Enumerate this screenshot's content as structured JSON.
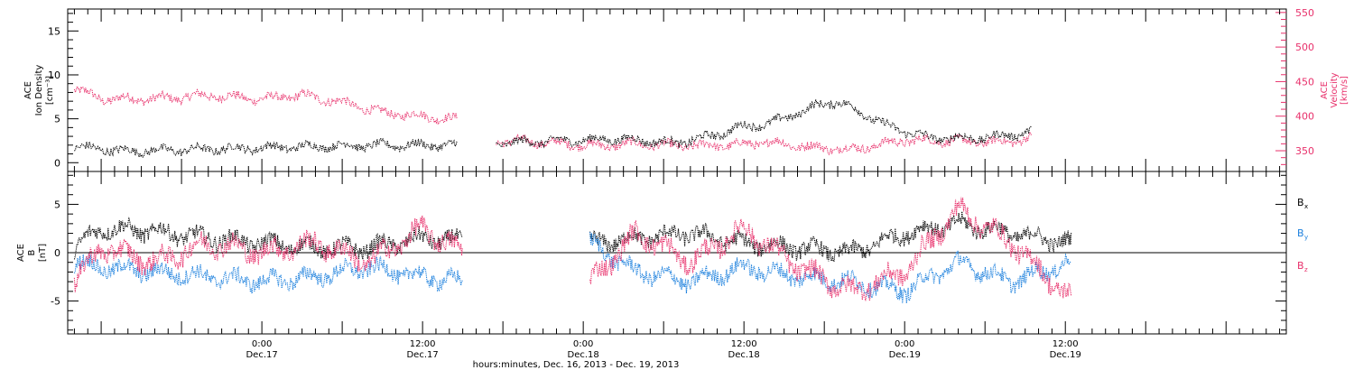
{
  "colors": {
    "black": "#000000",
    "pink": "#e8306b",
    "blue": "#1a7fdd"
  },
  "chart_data": [
    {
      "type": "scatter",
      "panel": "top",
      "ylabel_left": [
        "ACE",
        "Ion Density",
        "[cm⁻³]"
      ],
      "ylabel_right": [
        "ACE",
        "Velocity",
        "[km/s]"
      ],
      "ylim_left": [
        -1,
        17.5
      ],
      "ylim_right": [
        320,
        555
      ],
      "yticks_left": [
        "0",
        "5",
        "10",
        "15"
      ],
      "yticks_left_values": [
        0,
        5,
        10,
        15
      ],
      "yticks_right": [
        "350",
        "400",
        "450",
        "500",
        "550"
      ],
      "yticks_right_values": [
        350,
        400,
        450,
        500,
        550
      ],
      "series": [
        {
          "color": "#000000",
          "axis": "left",
          "segments": [
            {
              "x": [
                -14,
                -10,
                -5,
                0,
                5,
                10,
                14.6
              ],
              "y": [
                1.8,
                1.3,
                1.5,
                1.7,
                1.9,
                2.0,
                2.0
              ]
            },
            {
              "x": [
                17.5,
                22,
                27,
                31,
                34,
                35.5,
                38,
                41.5,
                43,
                47,
                50,
                54,
                57.5
              ],
              "y": [
                2.2,
                2.5,
                2.7,
                2.2,
                3.2,
                4.0,
                4.5,
                6.5,
                7.0,
                4.0,
                2.8,
                2.8,
                3.5
              ]
            }
          ]
        },
        {
          "color": "#e8306b",
          "axis": "right",
          "segments": [
            {
              "x": [
                -14,
                -12,
                -8,
                -4,
                0,
                3,
                6,
                9,
                12,
                14.6
              ],
              "y": [
                440,
                425,
                425,
                430,
                425,
                430,
                420,
                405,
                400,
                395
              ]
            },
            {
              "x": [
                17.5,
                21,
                25,
                28,
                31,
                35,
                38,
                41,
                44,
                48,
                52,
                55,
                57.5
              ],
              "y": [
                365,
                362,
                357,
                360,
                357,
                358,
                362,
                355,
                352,
                365,
                364,
                362,
                368
              ]
            }
          ]
        }
      ]
    },
    {
      "type": "scatter",
      "panel": "bottom",
      "ylabel_left": [
        "ACE",
        "B",
        "[nT]"
      ],
      "ylim": [
        -8.4,
        8.4
      ],
      "yticks": [
        "-5",
        "0",
        "5"
      ],
      "yticks_values": [
        -5,
        0,
        5
      ],
      "legend": [
        {
          "label": "B",
          "sub": "x",
          "color": "#000000"
        },
        {
          "label": "B",
          "sub": "y",
          "color": "#1a7fdd"
        },
        {
          "label": "B",
          "sub": "z",
          "color": "#e8306b"
        }
      ],
      "series": [
        {
          "color": "#000000",
          "segments": [
            {
              "x": [
                -14,
                -12,
                -8,
                -4,
                0,
                4,
                8,
                12,
                15
              ],
              "y": [
                0.5,
                2.5,
                2.2,
                1.5,
                1.0,
                0.5,
                0.5,
                1.5,
                1.2
              ]
            },
            {
              "x": [
                24.5,
                28,
                32,
                36,
                40,
                44,
                48,
                52,
                56,
                60.5
              ],
              "y": [
                1.0,
                1.5,
                2.0,
                1.0,
                0.5,
                0.0,
                2.0,
                3.0,
                2.0,
                1.0
              ]
            }
          ]
        },
        {
          "color": "#1a7fdd",
          "segments": [
            {
              "x": [
                -14,
                -12,
                -8,
                -4,
                0,
                4,
                8,
                12,
                15
              ],
              "y": [
                -1.0,
                -1.5,
                -2.0,
                -2.5,
                -3.0,
                -2.5,
                -1.5,
                -2.5,
                -3.0
              ]
            },
            {
              "x": [
                24.5,
                28,
                32,
                36,
                40,
                44,
                48,
                52,
                56,
                60.5
              ],
              "y": [
                1.0,
                -2.0,
                -3.0,
                -1.5,
                -2.5,
                -3.0,
                -4.0,
                -1.0,
                -3.0,
                -1.0
              ]
            }
          ]
        },
        {
          "color": "#e8306b",
          "segments": [
            {
              "x": [
                -14,
                -12,
                -8,
                -4,
                0,
                4,
                8,
                12,
                15
              ],
              "y": [
                -3.0,
                0.5,
                -1.0,
                1.0,
                0.0,
                1.0,
                -1.0,
                2.5,
                0.0
              ]
            },
            {
              "x": [
                24.5,
                28,
                32,
                36,
                40,
                44,
                48,
                52,
                56,
                60.5
              ],
              "y": [
                -3.0,
                2.0,
                -1.0,
                2.5,
                -1.5,
                -4.0,
                -2.0,
                4.5,
                1.0,
                -5.0
              ]
            }
          ]
        }
      ]
    }
  ],
  "x_axis": {
    "xlabel": "hours:minutes, Dec. 16, 2013 - Dec. 19, 2013",
    "xlim": [
      -14.5,
      76.5
    ],
    "ticks": [
      {
        "x": 0,
        "time": "0:00",
        "date": "Dec.17"
      },
      {
        "x": 12,
        "time": "12:00",
        "date": "Dec.17"
      },
      {
        "x": 24,
        "time": "0:00",
        "date": "Dec.18"
      },
      {
        "x": 36,
        "time": "12:00",
        "date": "Dec.18"
      },
      {
        "x": 48,
        "time": "0:00",
        "date": "Dec.19"
      },
      {
        "x": 60,
        "time": "12:00",
        "date": "Dec.19"
      }
    ]
  }
}
